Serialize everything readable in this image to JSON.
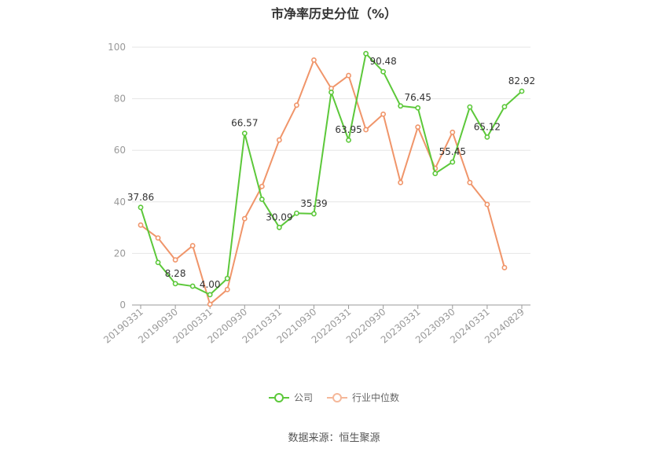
{
  "chart_data": {
    "type": "line",
    "title": "市净率历史分位（%）",
    "categories": [
      "20190331",
      "20190630",
      "20190930",
      "20191231",
      "20200331",
      "20200630",
      "20200930",
      "20201231",
      "20210331",
      "20210630",
      "20210930",
      "20211231",
      "20220331",
      "20220630",
      "20220930",
      "20221231",
      "20230331",
      "20230630",
      "20230930",
      "20231231",
      "20240331",
      "20240630",
      "20240829"
    ],
    "xtick_labels": [
      "20190331",
      "20190930",
      "20200331",
      "20200930",
      "20210331",
      "20210930",
      "20220331",
      "20220930",
      "20230331",
      "20230930",
      "20240331",
      "20240829"
    ],
    "ylim": [
      0,
      100
    ],
    "yticks": [
      0,
      20,
      40,
      60,
      80,
      100
    ],
    "grid": true,
    "legend_position": "bottom",
    "series": [
      {
        "name": "公司",
        "color": "#5cc83a",
        "values": [
          37.86,
          16.5,
          8.28,
          7.3,
          4.0,
          10.3,
          66.57,
          41.0,
          30.09,
          35.6,
          35.39,
          82.5,
          63.95,
          97.5,
          90.48,
          77.2,
          76.45,
          51.0,
          55.45,
          76.8,
          65.12,
          76.9,
          82.92
        ],
        "labels": {
          "0": "37.86",
          "2": "8.28",
          "4": "4.00",
          "6": "66.57",
          "8": "30.09",
          "10": "35.39",
          "12": "63.95",
          "14": "90.48",
          "16": "76.45",
          "18": "55.45",
          "20": "65.12",
          "22": "82.92"
        }
      },
      {
        "name": "行业中位数",
        "color": "#f0956a",
        "values": [
          31.0,
          26.0,
          17.5,
          23.0,
          0.3,
          6.0,
          33.5,
          46.0,
          64.0,
          77.5,
          95.0,
          84.0,
          89.0,
          68.0,
          74.0,
          47.5,
          69.0,
          53.0,
          67.0,
          47.5,
          39.0,
          14.5,
          null
        ]
      }
    ]
  },
  "legend": {
    "company": "公司",
    "industry": "行业中位数"
  },
  "source": "数据来源：恒生聚源"
}
